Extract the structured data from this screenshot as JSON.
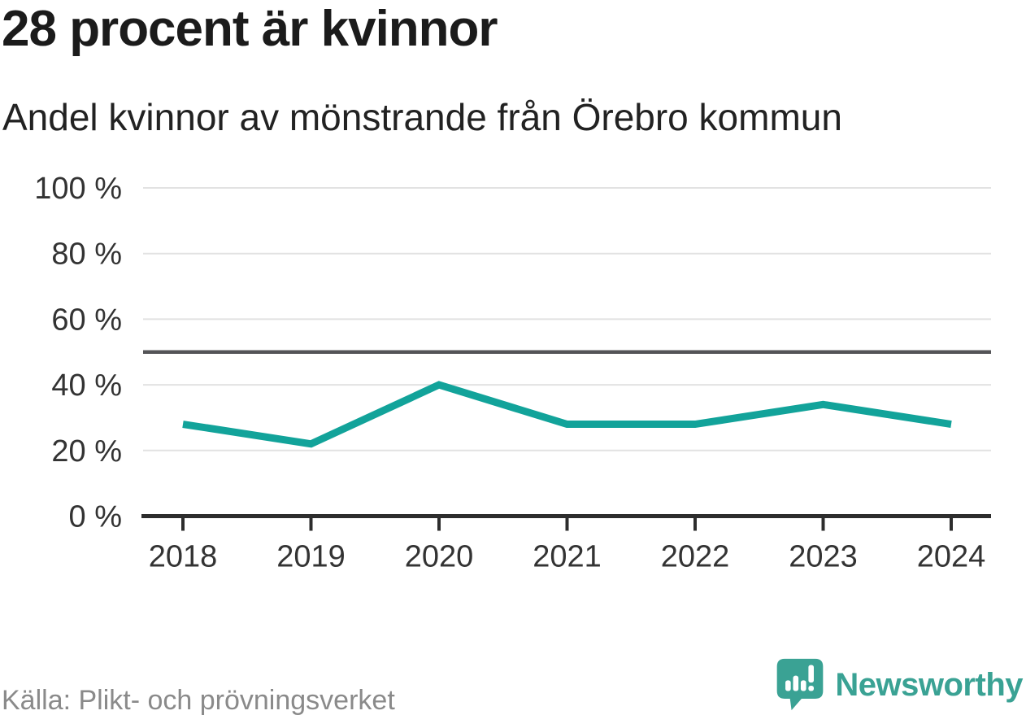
{
  "chart_data": {
    "type": "line",
    "title": "28 procent är kvinnor",
    "subtitle": "Andel kvinnor av mönstrande från Örebro kommun",
    "x": [
      "2018",
      "2019",
      "2020",
      "2021",
      "2022",
      "2023",
      "2024"
    ],
    "series": [
      {
        "name": "Andel kvinnor av mönstrande",
        "values": [
          28,
          22,
          40,
          28,
          28,
          34,
          28
        ]
      }
    ],
    "ylim": [
      0,
      100
    ],
    "yticks": [
      0,
      20,
      40,
      60,
      80,
      100
    ],
    "ytick_suffix": " %",
    "reference_line": {
      "value": 50
    },
    "grid": true,
    "legend": "none"
  },
  "footer": {
    "source": "Källa: Plikt- och prövningsverket",
    "brand": "Newsworthy"
  },
  "colors": {
    "accent": "#12a39a",
    "brand_teal": "#3aa294",
    "grid_line": "#e2e2e2",
    "reference_line": "#545457",
    "axis": "#2d2d2d",
    "tick_text": "#333333",
    "title_text": "#1b1b1b",
    "source_text": "#8a8a8a"
  }
}
